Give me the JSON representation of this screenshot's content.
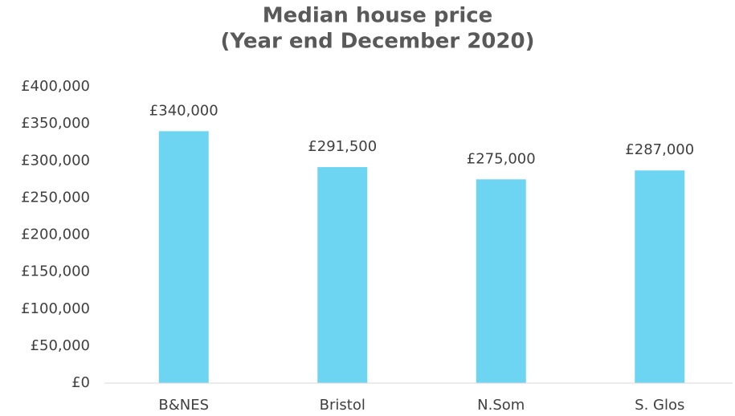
{
  "chart_data": {
    "type": "bar",
    "title": "Median house price",
    "subtitle": "(Year end December 2020)",
    "categories": [
      "B&NES",
      "Bristol",
      "N.Som",
      "S. Glos"
    ],
    "values": [
      340000,
      291500,
      275000,
      287000
    ],
    "value_labels": [
      "£340,000",
      "£291,500",
      "£275,000",
      "£287,000"
    ],
    "color": "#6dd5f1",
    "ylim": [
      0,
      400000
    ],
    "yticks": [
      {
        "value": 0,
        "label": "£0"
      },
      {
        "value": 50000,
        "label": "£50,000"
      },
      {
        "value": 100000,
        "label": "£100,000"
      },
      {
        "value": 150000,
        "label": "£150,000"
      },
      {
        "value": 200000,
        "label": "£200,000"
      },
      {
        "value": 250000,
        "label": "£250,000"
      },
      {
        "value": 300000,
        "label": "£300,000"
      },
      {
        "value": 350000,
        "label": "£350,000"
      },
      {
        "value": 400000,
        "label": "£400,000"
      }
    ],
    "grid": false
  }
}
